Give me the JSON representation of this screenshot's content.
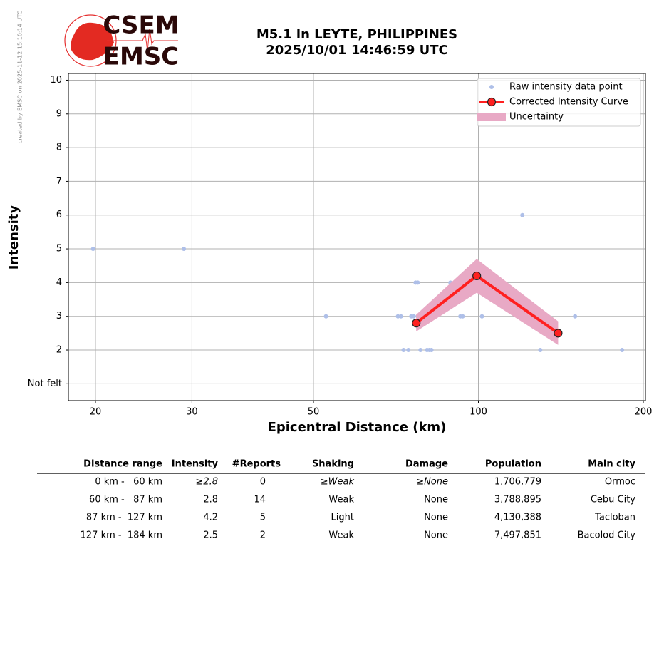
{
  "created_by": "created by EMSC on 2025-11-12 15:10:14 UTC",
  "logo": {
    "top": "CSEM",
    "bottom": "EMSC"
  },
  "chart_data": {
    "type": "line",
    "title": "M5.1 in LEYTE, PHILIPPINES",
    "subtitle": "2025/10/01 14:46:59 UTC",
    "x_label": "Epicentral Distance (km)",
    "y_label": "Intensity",
    "xscale": "log",
    "xlim": [
      17.85,
      201.8
    ],
    "xticks": [
      20,
      30,
      50,
      100,
      200
    ],
    "ylim": [
      0.5,
      10.2
    ],
    "yticks": [
      {
        "value": 1,
        "label": "Not felt"
      },
      2,
      3,
      4,
      5,
      6,
      7,
      8,
      9,
      10
    ],
    "grid": true,
    "legend": "upper right",
    "series": [
      {
        "name": "Raw intensity data point",
        "kind": "scatter",
        "color": "#aebfe8",
        "x": [
          19.8,
          29,
          52.7,
          71.3,
          72.2,
          73,
          74.5,
          75.4,
          76.2,
          76.8,
          77.5,
          77.5,
          78.4,
          80.6,
          81.4,
          82.1,
          88.9,
          92.7,
          93.6,
          101.5,
          120.3,
          129.7,
          150.1,
          182.9
        ],
        "values": [
          5,
          5,
          3,
          3,
          3,
          2,
          2,
          3,
          3,
          4,
          4,
          3,
          2,
          2,
          2,
          2,
          4,
          3,
          3,
          3,
          6,
          2,
          3,
          2
        ]
      },
      {
        "name": "Corrected Intensity Curve",
        "kind": "line",
        "color": "#ff2020",
        "x": [
          77,
          99.3,
          139.8
        ],
        "values": [
          2.8,
          4.2,
          2.5
        ]
      },
      {
        "name": "Uncertainty",
        "kind": "band",
        "color": "#e8a9c5",
        "x": [
          77,
          99.3,
          139.8
        ],
        "lower": [
          2.55,
          3.7,
          2.15
        ],
        "upper": [
          3.05,
          4.7,
          2.85
        ]
      }
    ]
  },
  "table": {
    "columns": [
      "Distance range",
      "Intensity",
      "#Reports",
      "Shaking",
      "Damage",
      "Population",
      "Main city"
    ],
    "rows": [
      [
        "0 km -   60 km",
        "≥2.8",
        "0",
        "≥Weak",
        "≥None",
        "1,706,779",
        "Ormoc"
      ],
      [
        "60 km -   87 km",
        "2.8",
        "14",
        "Weak",
        "None",
        "3,788,895",
        "Cebu City"
      ],
      [
        "87 km -  127 km",
        "4.2",
        "5",
        "Light",
        "None",
        "4,130,388",
        "Tacloban"
      ],
      [
        "127 km -  184 km",
        "2.5",
        "2",
        "Weak",
        "None",
        "7,497,851",
        "Bacolod City"
      ]
    ]
  }
}
